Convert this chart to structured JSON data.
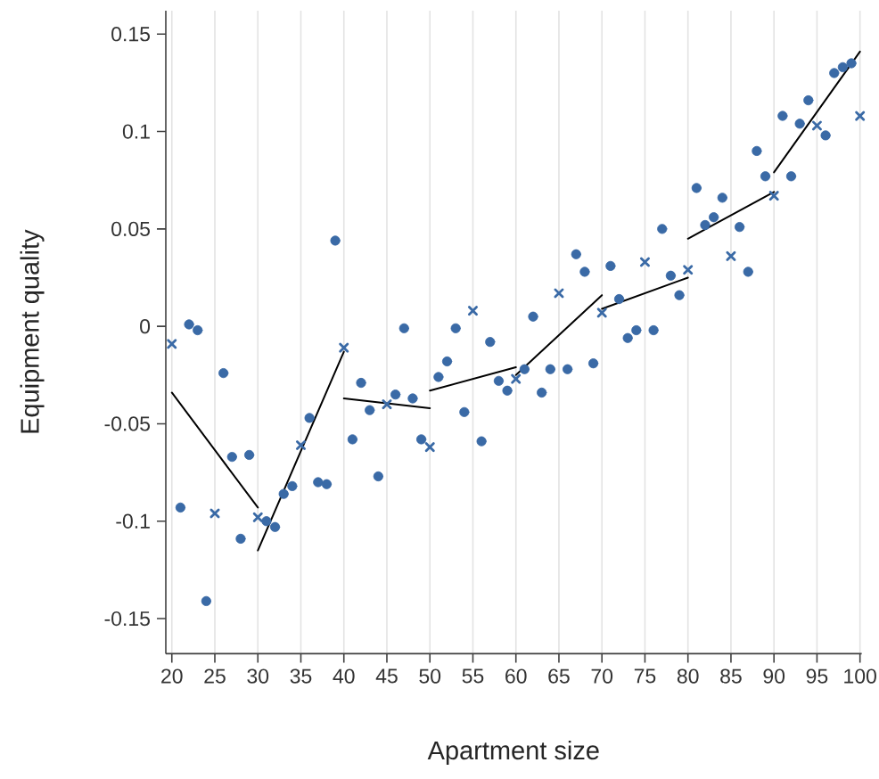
{
  "chart_data": {
    "type": "scatter",
    "xlabel": "Apartment size",
    "ylabel": "Equipment quality",
    "xlim": [
      19.3,
      100.2
    ],
    "ylim": [
      -0.168,
      0.162
    ],
    "xticks": [
      20,
      25,
      30,
      35,
      40,
      45,
      50,
      55,
      60,
      65,
      70,
      75,
      80,
      85,
      90,
      95,
      100
    ],
    "yticks": [
      -0.15,
      -0.1,
      -0.05,
      0,
      0.05,
      0.1,
      0.15
    ],
    "grid": "x",
    "series": [
      {
        "marker": "circle",
        "color": "#3a6aa6",
        "x": [
          21,
          22,
          23,
          24,
          26,
          27,
          28,
          29,
          31,
          32,
          33,
          34,
          36,
          37,
          38,
          39,
          41,
          42,
          43,
          44,
          46,
          47,
          48,
          49,
          51,
          52,
          53,
          54,
          56,
          57,
          58,
          59,
          61,
          62,
          63,
          64,
          66,
          67,
          68,
          69,
          71,
          72,
          73,
          74,
          76,
          77,
          78,
          79,
          81,
          82,
          83,
          84,
          86,
          87,
          88,
          89,
          91,
          92,
          93,
          94,
          96,
          97,
          98,
          99
        ],
        "values": [
          -0.093,
          0.001,
          -0.002,
          -0.141,
          -0.024,
          -0.067,
          -0.109,
          -0.066,
          -0.1,
          -0.103,
          -0.086,
          -0.082,
          -0.047,
          -0.08,
          -0.081,
          0.044,
          -0.058,
          -0.029,
          -0.043,
          -0.077,
          -0.035,
          -0.001,
          -0.037,
          -0.058,
          -0.026,
          -0.018,
          -0.001,
          -0.044,
          -0.059,
          -0.008,
          -0.028,
          -0.033,
          -0.022,
          0.005,
          -0.034,
          -0.022,
          -0.022,
          0.037,
          0.028,
          -0.019,
          0.031,
          0.014,
          -0.006,
          -0.002,
          -0.002,
          0.05,
          0.026,
          0.016,
          0.071,
          0.052,
          0.056,
          0.066,
          0.051,
          0.028,
          0.09,
          0.077,
          0.108,
          0.077,
          0.104,
          0.116,
          0.098,
          0.13,
          0.133,
          0.135
        ]
      },
      {
        "marker": "cross",
        "color": "#3a6aa6",
        "x": [
          20,
          25,
          30,
          35,
          40,
          45,
          50,
          55,
          60,
          65,
          70,
          75,
          80,
          85,
          90,
          95,
          100
        ],
        "values": [
          -0.009,
          -0.096,
          -0.098,
          -0.061,
          -0.011,
          -0.04,
          -0.062,
          0.008,
          -0.027,
          0.017,
          0.007,
          0.033,
          0.029,
          0.036,
          0.067,
          0.103,
          0.108
        ]
      },
      {
        "type": "line",
        "color": "#000000",
        "x": [
          20,
          30
        ],
        "values": [
          -0.034,
          -0.093
        ]
      },
      {
        "type": "line",
        "color": "#000000",
        "x": [
          30,
          40
        ],
        "values": [
          -0.115,
          -0.013
        ]
      },
      {
        "type": "line",
        "color": "#000000",
        "x": [
          40,
          50
        ],
        "values": [
          -0.037,
          -0.042
        ]
      },
      {
        "type": "line",
        "color": "#000000",
        "x": [
          50,
          60
        ],
        "values": [
          -0.033,
          -0.021
        ]
      },
      {
        "type": "line",
        "color": "#000000",
        "x": [
          60,
          70
        ],
        "values": [
          -0.025,
          0.016
        ]
      },
      {
        "type": "line",
        "color": "#000000",
        "x": [
          70,
          80
        ],
        "values": [
          0.009,
          0.025
        ]
      },
      {
        "type": "line",
        "color": "#000000",
        "x": [
          80,
          90
        ],
        "values": [
          0.045,
          0.069
        ]
      },
      {
        "type": "line",
        "color": "#000000",
        "x": [
          90,
          100
        ],
        "values": [
          0.079,
          0.141
        ]
      }
    ]
  }
}
